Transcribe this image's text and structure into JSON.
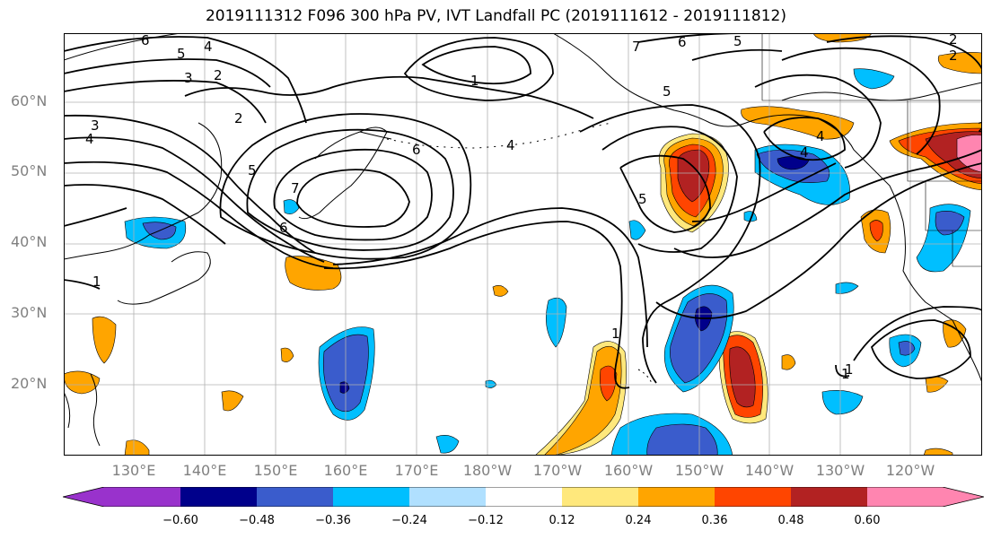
{
  "figure": {
    "title": "2019111312 F096 300 hPa PV, IVT Landfall PC (2019111612 - 2019111812)"
  },
  "map": {
    "projection": "PlateCarree",
    "lon_range": [
      120,
      250
    ],
    "lat_range": [
      10,
      70
    ],
    "gridlines": true,
    "lat_labels": [
      "60°N",
      "50°N",
      "40°N",
      "30°N",
      "20°N"
    ],
    "lon_labels": [
      "130°E",
      "140°E",
      "150°E",
      "160°E",
      "170°E",
      "180°W",
      "170°W",
      "160°W",
      "150°W",
      "140°W",
      "130°W",
      "120°W"
    ],
    "contour_labels": [
      "6",
      "5",
      "4",
      "3",
      "2",
      "1",
      "7",
      "5",
      "6",
      "4",
      "2",
      "1",
      "2",
      "3",
      "4",
      "5",
      "6",
      "7",
      "1",
      "6",
      "5",
      "4",
      "5",
      "4",
      "2",
      "1",
      "1",
      "2"
    ]
  },
  "colorbar": {
    "ticks": [
      "−0.60",
      "−0.48",
      "−0.36",
      "−0.24",
      "−0.12",
      "0.12",
      "0.24",
      "0.36",
      "0.48",
      "0.60"
    ],
    "colors": [
      "#9932cc",
      "#00008b",
      "#3a5ccc",
      "#00bfff",
      "#b0e0ff",
      "#ffffff",
      "#ffe87c",
      "#ffa500",
      "#ff4500",
      "#b22222",
      "#ff85b0"
    ],
    "extend": "both"
  },
  "chart_data": {
    "type": "heatmap",
    "title": "2019111312 F096 300 hPa PV, IVT Landfall PC (2019111612 - 2019111812)",
    "field_shaded": "IVT Landfall PC (anomaly, shaded)",
    "field_contoured": "300 hPa PV (PVU, black contours)",
    "levels": [
      -0.6,
      -0.48,
      -0.36,
      -0.24,
      -0.12,
      0.12,
      0.24,
      0.36,
      0.48,
      0.6
    ],
    "xlim": [
      120,
      250
    ],
    "ylim": [
      10,
      70
    ],
    "features": [
      {
        "sign": "positive",
        "peak": 0.6,
        "lon": 248,
        "lat": 53
      },
      {
        "sign": "positive",
        "peak": 0.48,
        "lon": 207,
        "lat": 48
      },
      {
        "sign": "positive",
        "peak": 0.48,
        "lon": 215,
        "lat": 23
      },
      {
        "sign": "positive",
        "peak": 0.36,
        "lon": 196,
        "lat": 20
      },
      {
        "sign": "negative",
        "peak": -0.6,
        "lon": 220,
        "lat": 51
      },
      {
        "sign": "negative",
        "peak": -0.6,
        "lon": 206,
        "lat": 28
      },
      {
        "sign": "negative",
        "peak": -0.48,
        "lon": 159,
        "lat": 22
      },
      {
        "sign": "negative",
        "peak": -0.36,
        "lon": 133,
        "lat": 42
      },
      {
        "sign": "negative",
        "peak": -0.36,
        "lon": 244,
        "lat": 43
      }
    ]
  }
}
